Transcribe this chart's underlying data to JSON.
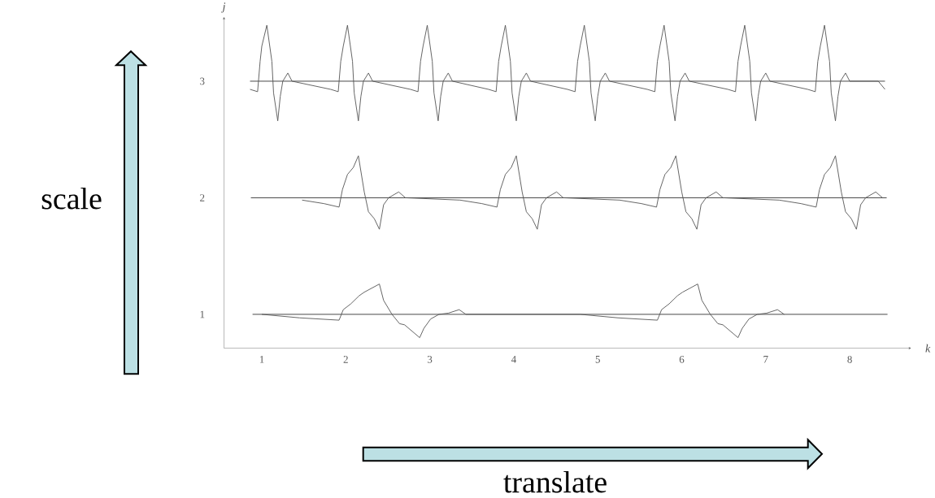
{
  "chart_data": {
    "type": "line",
    "xlabel": "k",
    "ylabel": "j",
    "annotations": [
      "scale",
      "translate"
    ],
    "xlim": [
      0.55,
      8.73
    ],
    "ylim": [
      0.71,
      3.55
    ],
    "xticks": [
      1,
      2,
      3,
      4,
      5,
      6,
      7,
      8
    ],
    "yticks": [
      1,
      2,
      3
    ],
    "marker": "none",
    "line_style": "solid",
    "series": [
      {
        "color": "#333333",
        "x": [
          0.86,
          8.42
        ],
        "values": [
          3,
          3
        ]
      },
      {
        "color": "#333333",
        "x": [
          0.87,
          8.44
        ],
        "values": [
          2,
          2
        ]
      },
      {
        "color": "#333333",
        "x": [
          0.89,
          8.45
        ],
        "values": [
          1,
          1
        ]
      },
      {
        "color": "#555555",
        "x": [
          0.86,
          0.95,
          0.98,
          1.0,
          1.06,
          1.12,
          1.14,
          1.19,
          1.22,
          1.25,
          1.31,
          1.36,
          1.82,
          1.91,
          1.94,
          1.97,
          2.02,
          2.08,
          2.1,
          2.15,
          2.18,
          2.21,
          2.27,
          2.32,
          2.77,
          2.86,
          2.89,
          2.92,
          2.97,
          3.03,
          3.05,
          3.1,
          3.13,
          3.16,
          3.22,
          3.27,
          3.7,
          3.79,
          3.82,
          3.85,
          3.9,
          3.96,
          3.98,
          4.03,
          4.06,
          4.09,
          4.15,
          4.2,
          4.64,
          4.73,
          4.76,
          4.79,
          4.84,
          4.9,
          4.92,
          4.97,
          5.0,
          5.03,
          5.09,
          5.14,
          5.59,
          5.68,
          5.71,
          5.74,
          5.79,
          5.85,
          5.87,
          5.92,
          5.95,
          5.98,
          6.04,
          6.09,
          6.55,
          6.64,
          6.67,
          6.7,
          6.75,
          6.81,
          6.83,
          6.88,
          6.91,
          6.94,
          7.0,
          7.05,
          7.5,
          7.59,
          7.62,
          7.65,
          7.7,
          7.76,
          7.78,
          7.83,
          7.86,
          7.89,
          7.95,
          8.0,
          8.34,
          8.42
        ],
        "values": [
          2.93,
          2.91,
          3.17,
          3.3,
          3.48,
          3.17,
          2.9,
          2.66,
          2.87,
          3.0,
          3.07,
          3.0,
          2.93,
          2.91,
          3.17,
          3.3,
          3.48,
          3.17,
          2.9,
          2.66,
          2.87,
          3.0,
          3.07,
          3.0,
          2.93,
          2.91,
          3.17,
          3.3,
          3.48,
          3.17,
          2.9,
          2.66,
          2.87,
          3.0,
          3.07,
          3.0,
          2.93,
          2.91,
          3.17,
          3.3,
          3.48,
          3.17,
          2.9,
          2.66,
          2.87,
          3.0,
          3.07,
          3.0,
          2.93,
          2.91,
          3.17,
          3.3,
          3.48,
          3.17,
          2.9,
          2.66,
          2.87,
          3.0,
          3.07,
          3.0,
          2.93,
          2.91,
          3.17,
          3.3,
          3.48,
          3.17,
          2.9,
          2.66,
          2.87,
          3.0,
          3.07,
          3.0,
          2.93,
          2.91,
          3.17,
          3.3,
          3.48,
          3.17,
          2.9,
          2.66,
          2.87,
          3.0,
          3.07,
          3.0,
          2.93,
          2.91,
          3.17,
          3.3,
          3.48,
          3.17,
          2.9,
          2.66,
          2.87,
          3.0,
          3.07,
          3.0,
          3.0,
          2.93
        ]
      },
      {
        "color": "#555555",
        "x": [
          1.48,
          1.74,
          1.92,
          1.96,
          2.02,
          2.09,
          2.15,
          2.22,
          2.27,
          2.34,
          2.4,
          2.45,
          2.51,
          2.63,
          2.71,
          3.36,
          3.62,
          3.8,
          3.84,
          3.9,
          3.97,
          4.03,
          4.1,
          4.15,
          4.22,
          4.28,
          4.33,
          4.39,
          4.51,
          4.59,
          5.26,
          5.52,
          5.7,
          5.74,
          5.8,
          5.87,
          5.93,
          6.0,
          6.05,
          6.12,
          6.18,
          6.23,
          6.29,
          6.41,
          6.49,
          7.16,
          7.42,
          7.6,
          7.64,
          7.7,
          7.77,
          7.83,
          7.9,
          7.95,
          8.02,
          8.08,
          8.13,
          8.19,
          8.31,
          8.39
        ],
        "values": [
          1.98,
          1.95,
          1.92,
          2.07,
          2.2,
          2.26,
          2.36,
          2.05,
          1.88,
          1.82,
          1.73,
          1.94,
          2.0,
          2.05,
          2.0,
          1.98,
          1.95,
          1.92,
          2.07,
          2.2,
          2.26,
          2.36,
          2.05,
          1.88,
          1.82,
          1.73,
          1.94,
          2.0,
          2.05,
          2.0,
          1.98,
          1.95,
          1.92,
          2.07,
          2.2,
          2.26,
          2.36,
          2.05,
          1.88,
          1.82,
          1.73,
          1.94,
          2.0,
          2.05,
          2.0,
          1.98,
          1.95,
          1.92,
          2.07,
          2.2,
          2.26,
          2.36,
          2.05,
          1.88,
          1.82,
          1.73,
          1.94,
          2.0,
          2.05,
          2.0
        ]
      },
      {
        "color": "#555555",
        "x": [
          1.0,
          1.45,
          1.92,
          1.97,
          2.06,
          2.16,
          2.22,
          2.4,
          2.45,
          2.55,
          2.64,
          2.7,
          2.88,
          2.93,
          3.01,
          3.11,
          3.22,
          3.35,
          3.43,
          4.79,
          5.24,
          5.71,
          5.76,
          5.85,
          5.95,
          6.01,
          6.19,
          6.24,
          6.34,
          6.43,
          6.49,
          6.67,
          6.72,
          6.8,
          6.9,
          7.01,
          7.14,
          7.22
        ],
        "values": [
          1.0,
          0.97,
          0.95,
          1.04,
          1.09,
          1.16,
          1.19,
          1.26,
          1.12,
          1.0,
          0.92,
          0.91,
          0.8,
          0.88,
          0.96,
          1.0,
          1.01,
          1.04,
          1.0,
          1.0,
          0.97,
          0.95,
          1.04,
          1.09,
          1.16,
          1.19,
          1.26,
          1.12,
          1.0,
          0.92,
          0.91,
          0.8,
          0.88,
          0.96,
          1.0,
          1.01,
          1.04,
          1.0
        ]
      }
    ]
  }
}
